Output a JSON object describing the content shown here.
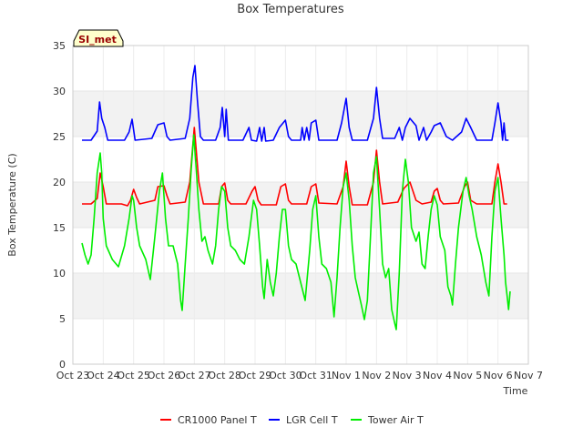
{
  "chart_data": {
    "type": "line",
    "title": "Box Temperatures",
    "badge": "SI_met",
    "xlabel": "Time",
    "ylabel": "Box Temperature (C)",
    "ylim": [
      0,
      35
    ],
    "yticks": [
      0,
      5,
      10,
      15,
      20,
      25,
      30,
      35
    ],
    "xlim": [
      0,
      15
    ],
    "xticks": [
      {
        "x": 0,
        "label": "Oct 23"
      },
      {
        "x": 1,
        "label": "Oct 24"
      },
      {
        "x": 2,
        "label": "Oct 25"
      },
      {
        "x": 3,
        "label": "Oct 26"
      },
      {
        "x": 4,
        "label": "Oct 27"
      },
      {
        "x": 5,
        "label": "Oct 28"
      },
      {
        "x": 6,
        "label": "Oct 29"
      },
      {
        "x": 7,
        "label": "Oct 30"
      },
      {
        "x": 8,
        "label": "Oct 31"
      },
      {
        "x": 9,
        "label": "Nov 1"
      },
      {
        "x": 10,
        "label": "Nov 2"
      },
      {
        "x": 11,
        "label": "Nov 3"
      },
      {
        "x": 12,
        "label": "Nov 4"
      },
      {
        "x": 13,
        "label": "Nov 5"
      },
      {
        "x": 14,
        "label": "Nov 6"
      },
      {
        "x": 15,
        "label": "Nov 7"
      }
    ],
    "grid": true,
    "legend_position": "bottom",
    "series": [
      {
        "name": "CR1000 Panel T",
        "color": "#ff0000",
        "points": [
          [
            0.3,
            17.6
          ],
          [
            0.6,
            17.6
          ],
          [
            0.8,
            18.2
          ],
          [
            0.9,
            21.0
          ],
          [
            1.0,
            19.5
          ],
          [
            1.1,
            17.6
          ],
          [
            1.6,
            17.6
          ],
          [
            1.8,
            17.4
          ],
          [
            1.9,
            18.0
          ],
          [
            2.0,
            19.2
          ],
          [
            2.1,
            18.3
          ],
          [
            2.2,
            17.6
          ],
          [
            2.7,
            18.0
          ],
          [
            2.8,
            19.5
          ],
          [
            3.0,
            19.6
          ],
          [
            3.1,
            18.5
          ],
          [
            3.2,
            17.6
          ],
          [
            3.7,
            17.8
          ],
          [
            3.85,
            20.0
          ],
          [
            4.0,
            26.0
          ],
          [
            4.15,
            20.0
          ],
          [
            4.3,
            17.6
          ],
          [
            4.8,
            17.6
          ],
          [
            4.9,
            19.5
          ],
          [
            5.0,
            19.9
          ],
          [
            5.1,
            18.0
          ],
          [
            5.2,
            17.6
          ],
          [
            5.7,
            17.6
          ],
          [
            5.9,
            19.0
          ],
          [
            6.0,
            19.5
          ],
          [
            6.1,
            18.0
          ],
          [
            6.2,
            17.5
          ],
          [
            6.7,
            17.5
          ],
          [
            6.85,
            19.5
          ],
          [
            7.0,
            19.8
          ],
          [
            7.1,
            18.0
          ],
          [
            7.2,
            17.6
          ],
          [
            7.7,
            17.6
          ],
          [
            7.85,
            19.5
          ],
          [
            8.0,
            19.8
          ],
          [
            8.1,
            17.7
          ],
          [
            8.7,
            17.6
          ],
          [
            8.9,
            19.5
          ],
          [
            9.0,
            22.3
          ],
          [
            9.1,
            19.5
          ],
          [
            9.2,
            17.5
          ],
          [
            9.7,
            17.5
          ],
          [
            9.9,
            20.0
          ],
          [
            10.0,
            23.5
          ],
          [
            10.1,
            20.0
          ],
          [
            10.2,
            17.6
          ],
          [
            10.7,
            17.8
          ],
          [
            10.9,
            19.3
          ],
          [
            11.1,
            20.0
          ],
          [
            11.3,
            18.0
          ],
          [
            11.5,
            17.6
          ],
          [
            11.8,
            17.8
          ],
          [
            11.9,
            19.0
          ],
          [
            12.0,
            19.3
          ],
          [
            12.1,
            18.0
          ],
          [
            12.2,
            17.6
          ],
          [
            12.7,
            17.7
          ],
          [
            12.9,
            19.5
          ],
          [
            13.0,
            20.0
          ],
          [
            13.1,
            18.0
          ],
          [
            13.3,
            17.6
          ],
          [
            13.8,
            17.6
          ],
          [
            13.9,
            20.0
          ],
          [
            14.0,
            22.0
          ],
          [
            14.1,
            20.0
          ],
          [
            14.2,
            17.6
          ],
          [
            14.3,
            17.6
          ]
        ]
      },
      {
        "name": "LGR Cell T",
        "color": "#0000ff",
        "points": [
          [
            0.3,
            24.6
          ],
          [
            0.6,
            24.6
          ],
          [
            0.8,
            25.6
          ],
          [
            0.88,
            28.8
          ],
          [
            0.95,
            27.0
          ],
          [
            1.05,
            26.0
          ],
          [
            1.15,
            24.6
          ],
          [
            1.7,
            24.6
          ],
          [
            1.85,
            25.5
          ],
          [
            1.95,
            26.9
          ],
          [
            2.05,
            24.6
          ],
          [
            2.6,
            24.8
          ],
          [
            2.8,
            26.3
          ],
          [
            3.0,
            26.5
          ],
          [
            3.1,
            25.0
          ],
          [
            3.2,
            24.6
          ],
          [
            3.7,
            24.8
          ],
          [
            3.85,
            27.0
          ],
          [
            3.95,
            31.5
          ],
          [
            4.02,
            32.8
          ],
          [
            4.1,
            29.0
          ],
          [
            4.2,
            25.0
          ],
          [
            4.3,
            24.6
          ],
          [
            4.7,
            24.6
          ],
          [
            4.85,
            26.0
          ],
          [
            4.92,
            28.2
          ],
          [
            5.0,
            25.0
          ],
          [
            5.05,
            28.0
          ],
          [
            5.12,
            24.6
          ],
          [
            5.6,
            24.6
          ],
          [
            5.8,
            26.0
          ],
          [
            5.88,
            24.6
          ],
          [
            6.05,
            24.5
          ],
          [
            6.15,
            26.0
          ],
          [
            6.22,
            24.5
          ],
          [
            6.3,
            26.0
          ],
          [
            6.35,
            24.5
          ],
          [
            6.6,
            24.6
          ],
          [
            6.8,
            26.0
          ],
          [
            7.0,
            26.8
          ],
          [
            7.1,
            25.0
          ],
          [
            7.2,
            24.6
          ],
          [
            7.5,
            24.6
          ],
          [
            7.55,
            26.0
          ],
          [
            7.62,
            24.6
          ],
          [
            7.7,
            26.0
          ],
          [
            7.78,
            24.6
          ],
          [
            7.85,
            26.5
          ],
          [
            8.0,
            26.8
          ],
          [
            8.1,
            24.6
          ],
          [
            8.7,
            24.6
          ],
          [
            8.85,
            26.5
          ],
          [
            9.0,
            29.2
          ],
          [
            9.1,
            26.0
          ],
          [
            9.2,
            24.6
          ],
          [
            9.7,
            24.6
          ],
          [
            9.9,
            27.0
          ],
          [
            10.0,
            30.4
          ],
          [
            10.1,
            27.0
          ],
          [
            10.2,
            24.8
          ],
          [
            10.6,
            24.8
          ],
          [
            10.75,
            26.0
          ],
          [
            10.85,
            24.6
          ],
          [
            10.95,
            26.0
          ],
          [
            11.1,
            27.0
          ],
          [
            11.3,
            26.2
          ],
          [
            11.4,
            24.6
          ],
          [
            11.55,
            26.0
          ],
          [
            11.65,
            24.6
          ],
          [
            11.8,
            25.5
          ],
          [
            11.9,
            26.2
          ],
          [
            12.1,
            26.5
          ],
          [
            12.3,
            25.0
          ],
          [
            12.5,
            24.6
          ],
          [
            12.8,
            25.5
          ],
          [
            12.95,
            27.0
          ],
          [
            13.1,
            26.0
          ],
          [
            13.3,
            24.6
          ],
          [
            13.8,
            24.6
          ],
          [
            13.9,
            26.5
          ],
          [
            14.0,
            28.7
          ],
          [
            14.1,
            26.5
          ],
          [
            14.15,
            24.6
          ],
          [
            14.2,
            26.5
          ],
          [
            14.25,
            24.6
          ],
          [
            14.35,
            24.6
          ]
        ]
      },
      {
        "name": "Tower Air T",
        "color": "#00ee00",
        "points": [
          [
            0.3,
            13.3
          ],
          [
            0.4,
            12.0
          ],
          [
            0.5,
            11.0
          ],
          [
            0.6,
            12.0
          ],
          [
            0.7,
            16.0
          ],
          [
            0.8,
            21.0
          ],
          [
            0.9,
            23.2
          ],
          [
            0.95,
            21.0
          ],
          [
            1.0,
            16.0
          ],
          [
            1.1,
            13.0
          ],
          [
            1.3,
            11.5
          ],
          [
            1.5,
            10.7
          ],
          [
            1.7,
            13.0
          ],
          [
            1.85,
            16.0
          ],
          [
            1.95,
            18.5
          ],
          [
            2.0,
            18.0
          ],
          [
            2.1,
            15.0
          ],
          [
            2.2,
            13.0
          ],
          [
            2.4,
            11.5
          ],
          [
            2.55,
            9.3
          ],
          [
            2.7,
            14.0
          ],
          [
            2.85,
            19.0
          ],
          [
            2.95,
            21.0
          ],
          [
            3.05,
            16.0
          ],
          [
            3.15,
            13.0
          ],
          [
            3.3,
            13.0
          ],
          [
            3.45,
            11.0
          ],
          [
            3.55,
            7.0
          ],
          [
            3.6,
            5.9
          ],
          [
            3.7,
            11.0
          ],
          [
            3.8,
            16.0
          ],
          [
            3.9,
            21.5
          ],
          [
            3.98,
            25.2
          ],
          [
            4.05,
            22.0
          ],
          [
            4.15,
            17.0
          ],
          [
            4.25,
            13.5
          ],
          [
            4.35,
            14.0
          ],
          [
            4.45,
            12.5
          ],
          [
            4.6,
            11.0
          ],
          [
            4.7,
            13.0
          ],
          [
            4.8,
            17.0
          ],
          [
            4.9,
            19.5
          ],
          [
            5.0,
            19.0
          ],
          [
            5.1,
            15.0
          ],
          [
            5.2,
            13.0
          ],
          [
            5.35,
            12.5
          ],
          [
            5.5,
            11.5
          ],
          [
            5.65,
            11.0
          ],
          [
            5.8,
            14.0
          ],
          [
            5.95,
            18.0
          ],
          [
            6.05,
            17.0
          ],
          [
            6.15,
            13.0
          ],
          [
            6.25,
            8.5
          ],
          [
            6.3,
            7.2
          ],
          [
            6.4,
            11.5
          ],
          [
            6.5,
            9.0
          ],
          [
            6.6,
            7.5
          ],
          [
            6.7,
            10.0
          ],
          [
            6.8,
            14.0
          ],
          [
            6.9,
            17.0
          ],
          [
            7.0,
            17.0
          ],
          [
            7.1,
            13.0
          ],
          [
            7.2,
            11.5
          ],
          [
            7.35,
            11.0
          ],
          [
            7.5,
            9.0
          ],
          [
            7.65,
            7.0
          ],
          [
            7.8,
            12.5
          ],
          [
            7.9,
            17.0
          ],
          [
            8.0,
            18.5
          ],
          [
            8.1,
            14.0
          ],
          [
            8.2,
            11.0
          ],
          [
            8.35,
            10.5
          ],
          [
            8.5,
            9.0
          ],
          [
            8.6,
            5.2
          ],
          [
            8.7,
            9.5
          ],
          [
            8.8,
            15.0
          ],
          [
            8.9,
            19.5
          ],
          [
            9.0,
            21.0
          ],
          [
            9.1,
            18.0
          ],
          [
            9.2,
            13.0
          ],
          [
            9.3,
            9.5
          ],
          [
            9.4,
            8.0
          ],
          [
            9.5,
            6.5
          ],
          [
            9.6,
            4.9
          ],
          [
            9.7,
            7.0
          ],
          [
            9.8,
            14.0
          ],
          [
            9.9,
            21.0
          ],
          [
            10.0,
            22.8
          ],
          [
            10.1,
            17.0
          ],
          [
            10.2,
            11.0
          ],
          [
            10.3,
            9.5
          ],
          [
            10.4,
            10.5
          ],
          [
            10.5,
            6.0
          ],
          [
            10.6,
            4.5
          ],
          [
            10.65,
            3.8
          ],
          [
            10.75,
            10.0
          ],
          [
            10.85,
            19.0
          ],
          [
            10.95,
            22.5
          ],
          [
            11.05,
            20.0
          ],
          [
            11.15,
            15.0
          ],
          [
            11.3,
            13.5
          ],
          [
            11.4,
            14.5
          ],
          [
            11.5,
            11.0
          ],
          [
            11.6,
            10.5
          ],
          [
            11.7,
            14.0
          ],
          [
            11.8,
            17.0
          ],
          [
            11.9,
            18.5
          ],
          [
            12.0,
            17.5
          ],
          [
            12.1,
            14.0
          ],
          [
            12.25,
            12.5
          ],
          [
            12.35,
            8.5
          ],
          [
            12.45,
            7.5
          ],
          [
            12.5,
            6.5
          ],
          [
            12.6,
            11.0
          ],
          [
            12.7,
            15.0
          ],
          [
            12.85,
            19.0
          ],
          [
            12.95,
            20.5
          ],
          [
            13.05,
            18.5
          ],
          [
            13.15,
            17.0
          ],
          [
            13.3,
            14.0
          ],
          [
            13.45,
            12.0
          ],
          [
            13.6,
            9.0
          ],
          [
            13.7,
            7.5
          ],
          [
            13.8,
            14.0
          ],
          [
            13.9,
            19.0
          ],
          [
            14.0,
            20.5
          ],
          [
            14.1,
            16.0
          ],
          [
            14.2,
            12.0
          ],
          [
            14.25,
            9.0
          ],
          [
            14.3,
            7.5
          ],
          [
            14.35,
            6.0
          ],
          [
            14.4,
            8.0
          ]
        ]
      }
    ]
  }
}
